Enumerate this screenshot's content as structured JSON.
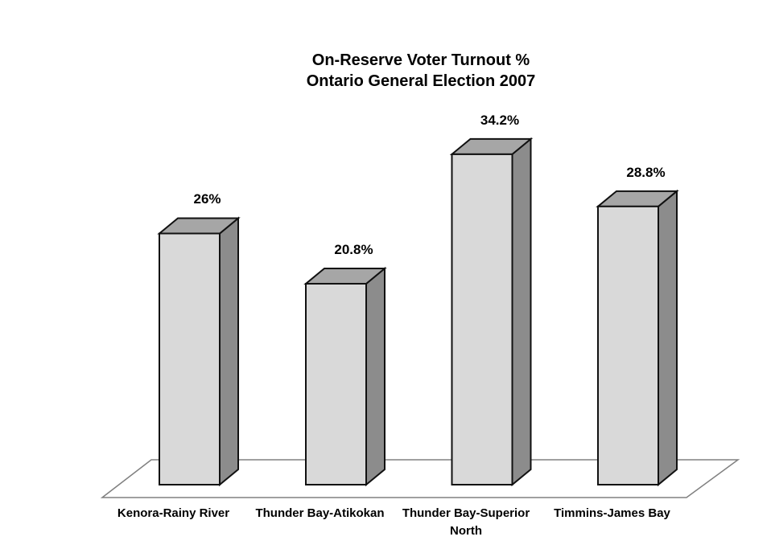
{
  "chart_data": {
    "type": "bar",
    "projection": "3d",
    "title": "On-Reserve Voter Turnout %",
    "subtitle": "Ontario General Election 2007",
    "categories": [
      "Kenora-Rainy River",
      "Thunder Bay-Atikokan",
      "Thunder Bay-Superior North",
      "Timmins-James Bay"
    ],
    "values": [
      26,
      20.8,
      34.2,
      28.8
    ],
    "value_labels": [
      "26%",
      "20.8%",
      "34.2%",
      "28.8%"
    ],
    "unit": "percent",
    "axes_visible": false,
    "grid": false,
    "legend": false,
    "colors": {
      "bar_front": "#d9d9d9",
      "bar_top": "#a6a6a6",
      "bar_side": "#8c8c8c",
      "bar_outline": "#111111",
      "floor_edge": "#808080",
      "text": "#000000",
      "background": "#ffffff"
    }
  }
}
